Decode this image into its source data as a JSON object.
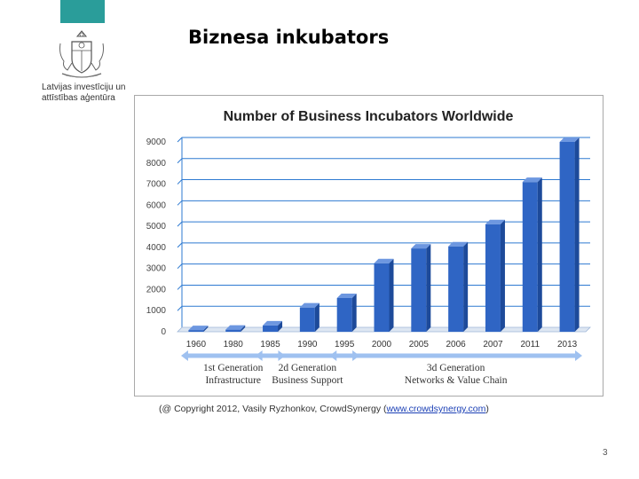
{
  "slide": {
    "title": "Biznesa inkubators",
    "page_number": "3",
    "colors": {
      "top_bar": "#2a9d9a",
      "bar": "#2f65c4",
      "bar_side": "#1d4a9a",
      "bar_top": "#6d97e0",
      "grid": "#2e7ad1",
      "arrow": "#9fc1f0"
    }
  },
  "logo": {
    "icon": "latvian-coat-of-arms-icon",
    "line1": "Latvijas investīciju un",
    "line2": "attīstības aģentūra"
  },
  "chart_data": {
    "type": "bar",
    "title": "Number of Business Incubators Worldwide",
    "categories": [
      "1960",
      "1980",
      "1985",
      "1990",
      "1995",
      "2000",
      "2005",
      "2006",
      "2007",
      "2011",
      "2013"
    ],
    "values": [
      80,
      100,
      300,
      1150,
      1600,
      3250,
      3950,
      4050,
      5100,
      7100,
      9000
    ],
    "ylim": [
      0,
      9000
    ],
    "yticks": [
      "0",
      "1000",
      "2000",
      "3000",
      "4000",
      "5000",
      "6000",
      "7000",
      "8000",
      "9000"
    ],
    "grid": true,
    "legend": "none",
    "annotations": [
      {
        "line1": "1st Generation",
        "line2": "Infrastructure",
        "from_category": 0,
        "to_category": 2
      },
      {
        "line1": "2d Generation",
        "line2": "Business Support",
        "from_category": 2,
        "to_category": 4
      },
      {
        "line1": "3d Generation",
        "line2": "Networks & Value Chain",
        "from_category": 4,
        "to_category": 10
      }
    ]
  },
  "credit": {
    "text": "(@ Copyright 2012, Vasily Ryzhonkov,  CrowdSynergy (",
    "link": "www.crowdsynergy.com",
    "suffix": ")"
  }
}
